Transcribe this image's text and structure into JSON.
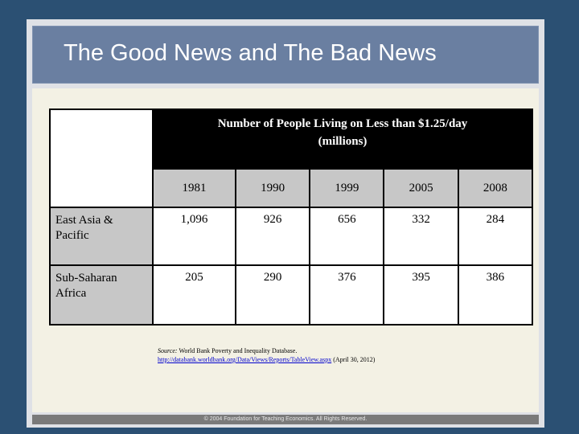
{
  "slide": {
    "title": "The Good News and The Bad News",
    "footer": "© 2004 Foundation for Teaching Economics. All Rights Reserved."
  },
  "table": {
    "header_line1": "Number of People Living on Less than $1.25/day",
    "header_line2": "(millions)",
    "years": [
      "1981",
      "1990",
      "1999",
      "2005",
      "2008"
    ],
    "rows": [
      {
        "label": "East Asia & Pacific",
        "values": [
          "1,096",
          "926",
          "656",
          "332",
          "284"
        ]
      },
      {
        "label": "Sub-Saharan Africa",
        "values": [
          "205",
          "290",
          "376",
          "395",
          "386"
        ]
      }
    ]
  },
  "source": {
    "label": "Source:",
    "text": "World Bank Poverty and Inequality Database.",
    "link": "http://databank.worldbank.org/Data/Views/Reports/TableView.aspx",
    "date": "(April 30, 2012)"
  }
}
